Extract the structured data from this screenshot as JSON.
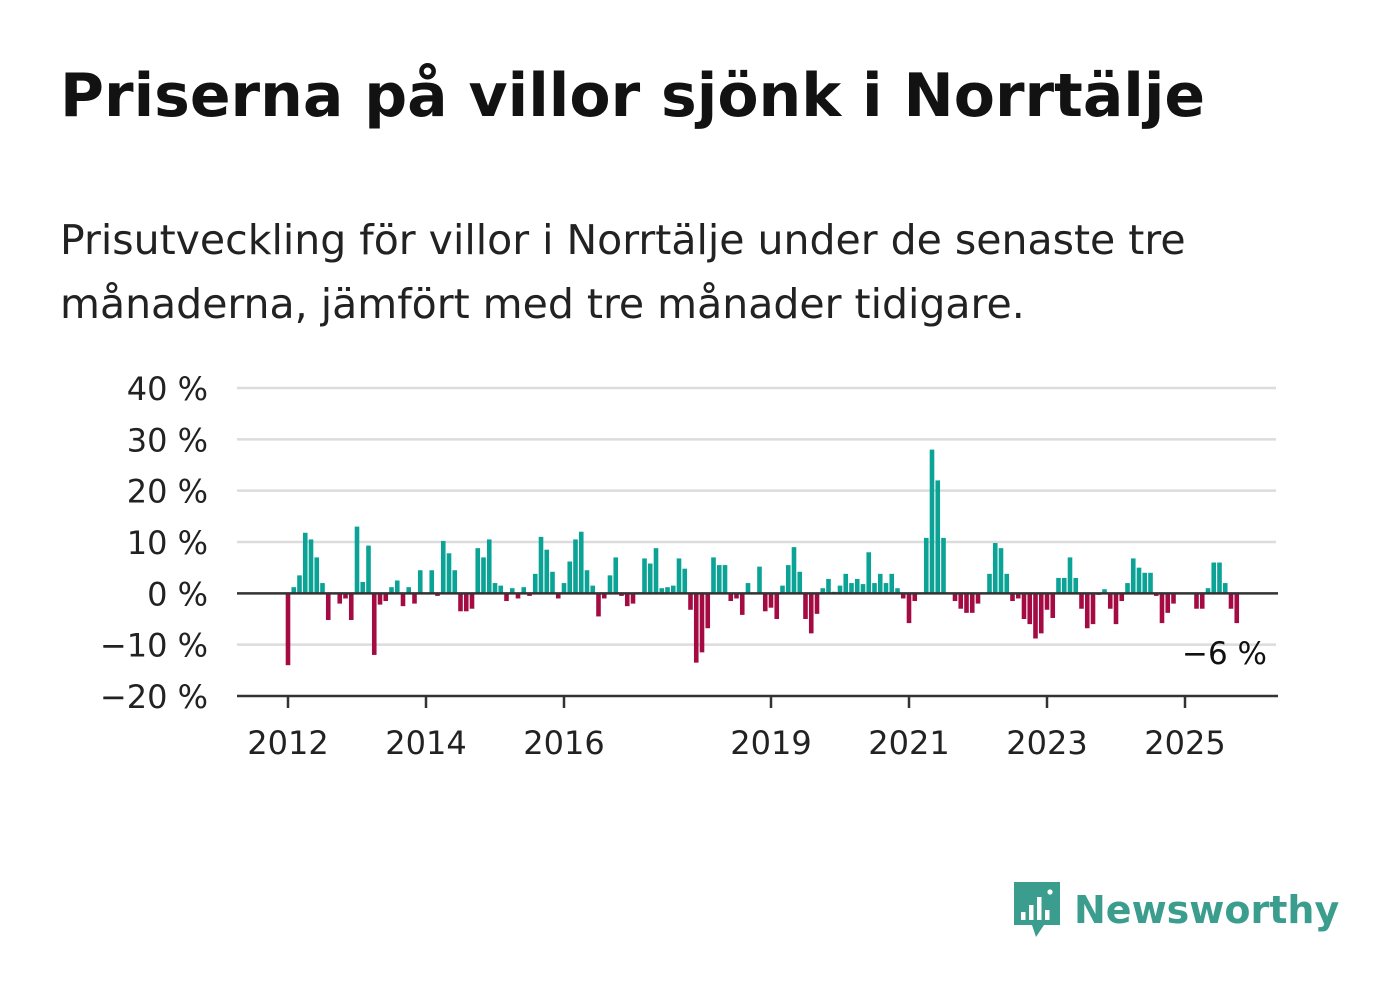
{
  "header": {
    "title": "Priserna på villor sjönk i Norrtälje",
    "subtitle": "Prisutveckling för villor i Norrtälje under de senaste tre månaderna, jämfört med tre månader tidigare."
  },
  "brand": {
    "name": "Newsworthy",
    "icon": "newsworthy-logo-icon",
    "color": "#3a9d8d"
  },
  "colors": {
    "positive": "#0aa395",
    "negative": "#a50b43",
    "grid": "#dcdcdc",
    "axis": "#333333"
  },
  "chart_data": {
    "type": "bar",
    "title": "Priserna på villor sjönk i Norrtälje",
    "ylabel": "",
    "xlabel": "",
    "ylim": [
      -20,
      40
    ],
    "y_ticks": [
      40,
      30,
      20,
      10,
      0,
      -10,
      -20
    ],
    "y_tick_labels": [
      "40 %",
      "30 %",
      "20 %",
      "10 %",
      "0 %",
      "−10 %",
      "−20 %"
    ],
    "x_ticks": [
      2012,
      2014,
      2016,
      2019,
      2021,
      2023,
      2025
    ],
    "x_tick_labels": [
      "2012",
      "2014",
      "2016",
      "2019",
      "2021",
      "2023",
      "2025"
    ],
    "grid": true,
    "x_start": "2012-01",
    "frequency": "monthly",
    "values": [
      -14,
      1.2,
      3.5,
      11.8,
      10.5,
      7,
      2,
      -5.2,
      0,
      -2,
      -1,
      -5.2,
      13,
      2.2,
      9.3,
      -12,
      -2.2,
      -1.5,
      1.2,
      2.5,
      -2.5,
      1.2,
      -2,
      4.5,
      0.1,
      4.5,
      -0.5,
      10.2,
      7.8,
      4.5,
      -3.5,
      -3.5,
      -3,
      8.8,
      7,
      10.5,
      2,
      1.5,
      -1.5,
      1,
      -1,
      1.2,
      -0.5,
      3.8,
      11,
      8.5,
      4.2,
      -1,
      2,
      6.2,
      10.5,
      12,
      4.5,
      1.5,
      -4.5,
      -1,
      3.5,
      7,
      -0.5,
      -2.5,
      -2,
      0.2,
      6.8,
      5.8,
      8.8,
      1,
      1.2,
      1.5,
      6.8,
      4.8,
      -3.2,
      -13.5,
      -11.5,
      -6.8,
      7,
      5.5,
      5.5,
      -1.5,
      -1,
      -4.2,
      2,
      0,
      5.2,
      -3.5,
      -2.8,
      -5,
      1.5,
      5.5,
      9,
      4.2,
      -5,
      -7.8,
      -4,
      1,
      2.8,
      0.3,
      1.5,
      3.8,
      2,
      2.8,
      1.8,
      8,
      2,
      3.8,
      2,
      3.8,
      1,
      -1,
      -5.8,
      -1.5,
      0,
      10.8,
      28,
      22,
      10.8,
      0,
      -1.5,
      -3,
      -3.8,
      -3.8,
      -2,
      0,
      3.8,
      9.8,
      8.8,
      3.8,
      -1.5,
      -1,
      -5,
      -6,
      -8.8,
      -7.8,
      -3.2,
      -4.8,
      3,
      3,
      7,
      3,
      -3,
      -6.8,
      -6,
      -0.3,
      0.8,
      -3,
      -6,
      -1.5,
      2,
      6.8,
      5,
      4,
      4,
      -0.5,
      -5.8,
      -3.8,
      -2,
      0,
      0,
      0,
      -3,
      -3,
      1,
      6,
      6,
      2,
      -3,
      -5.8
    ],
    "annotation": {
      "text": "−6 %"
    }
  }
}
